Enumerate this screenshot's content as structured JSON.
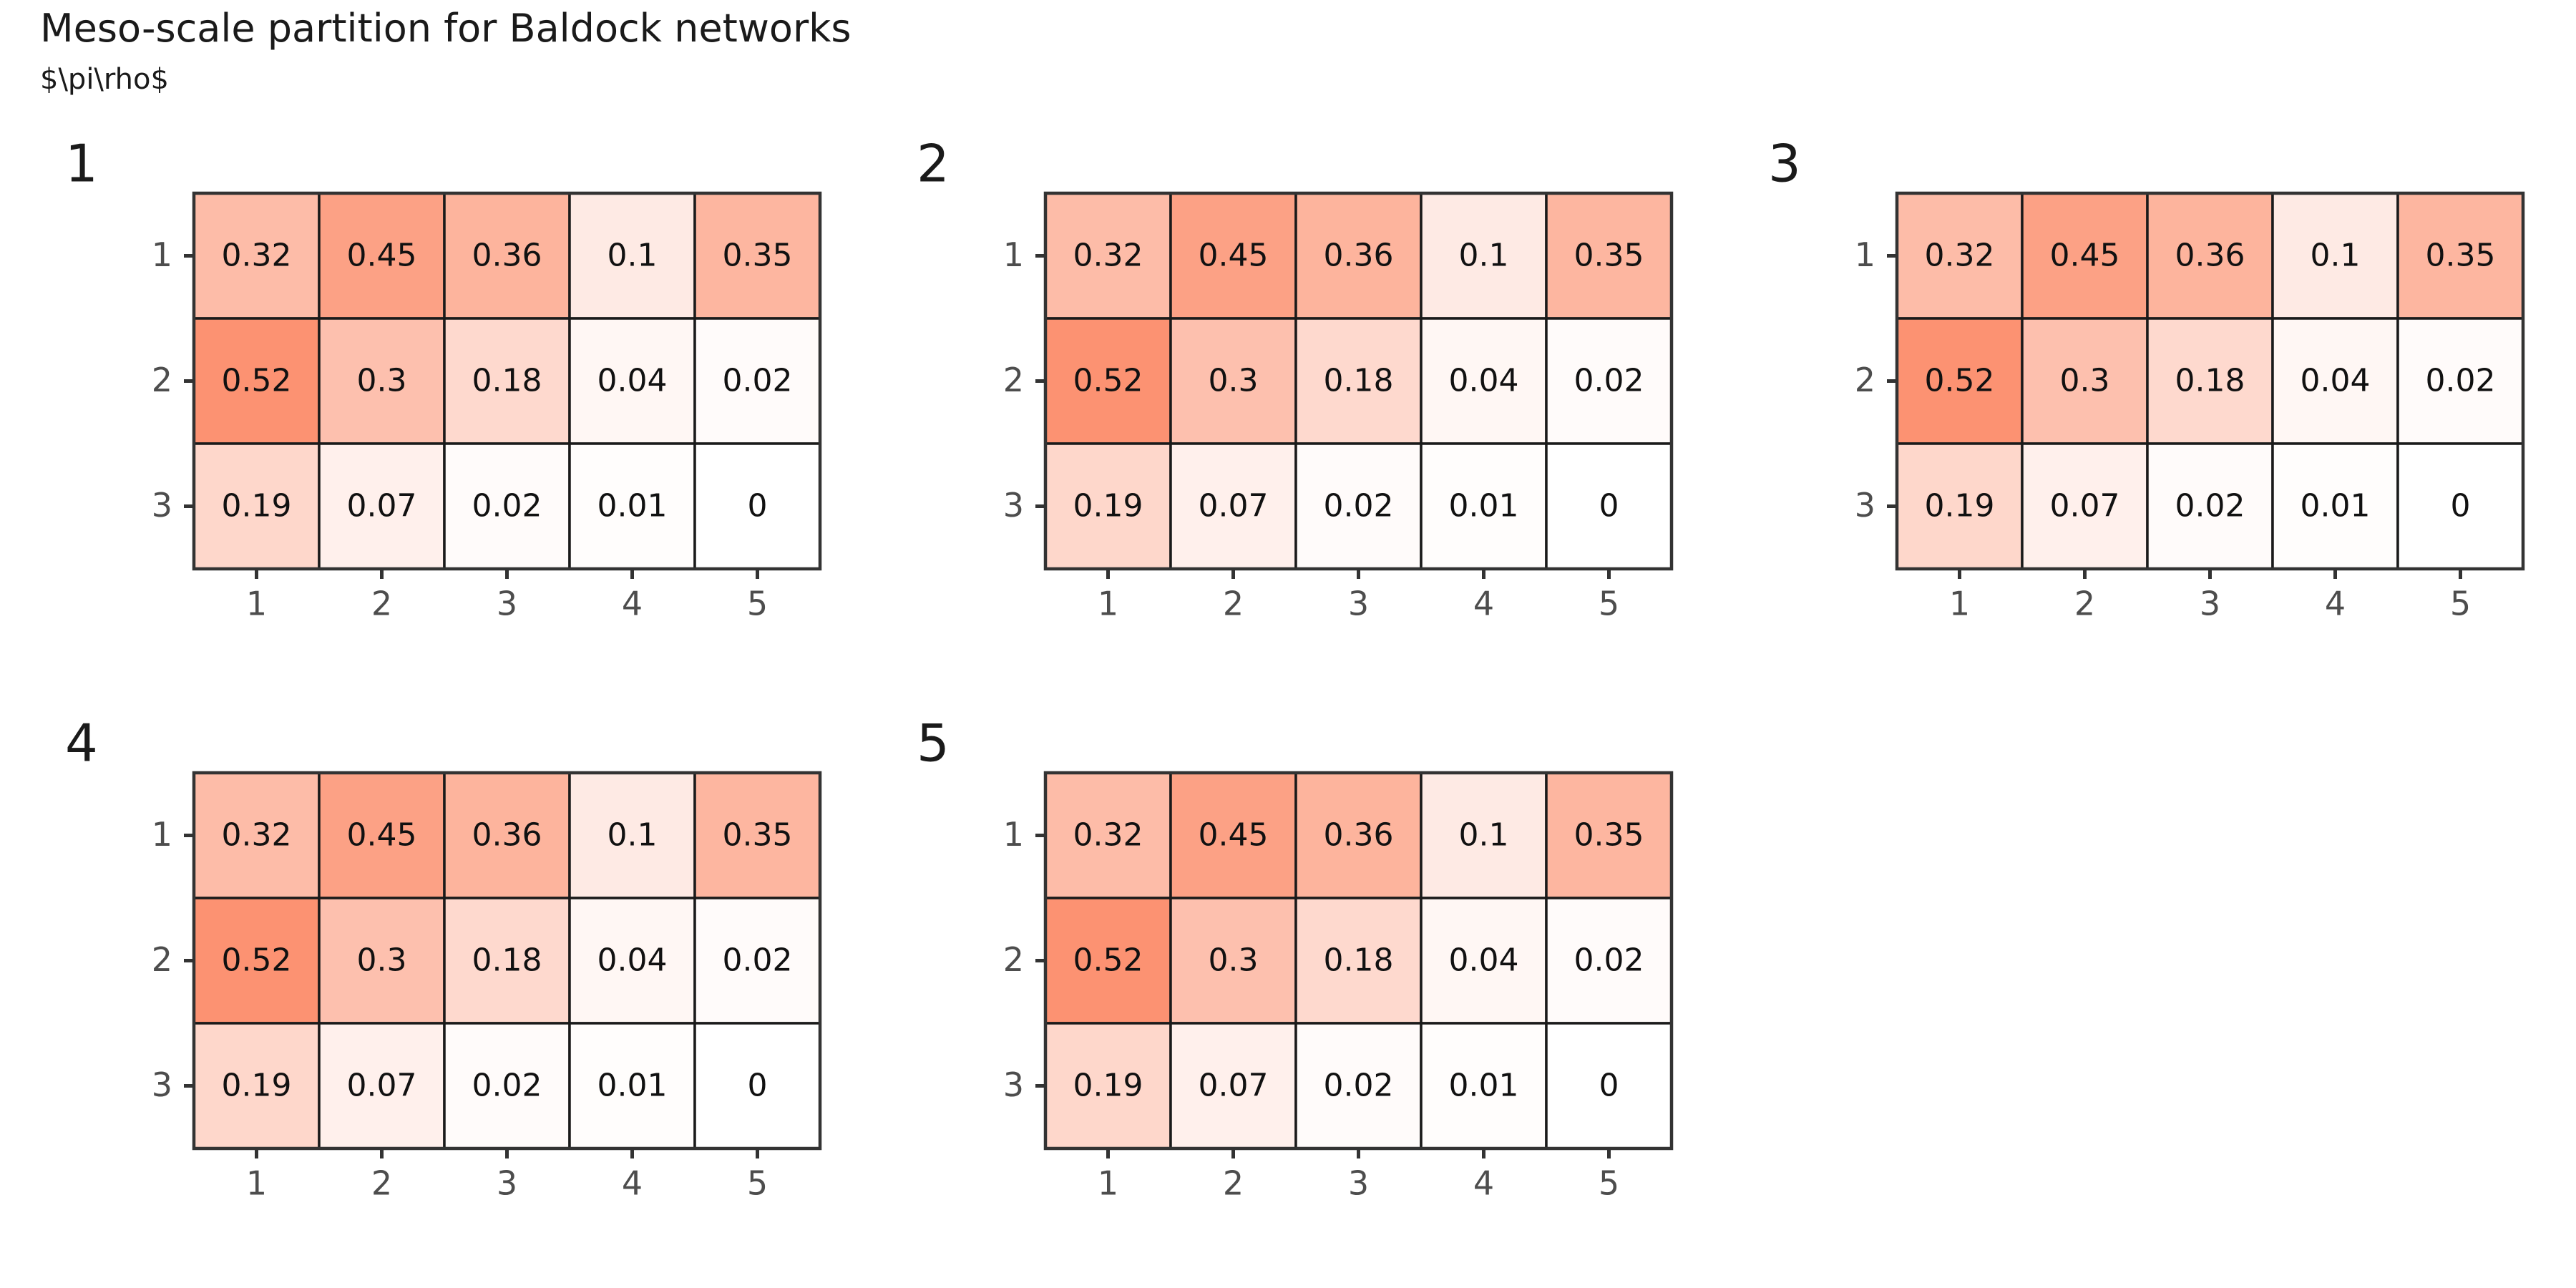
{
  "chart_data": {
    "type": "heatmap",
    "title": "Meso-scale partition for Baldock networks",
    "subtitle": "$\\pi\\rho$",
    "value_range": [
      0,
      0.52
    ],
    "color_low": "#ffffff",
    "color_high": "#fc9272",
    "rows": [
      "1",
      "2",
      "3"
    ],
    "columns": [
      "1",
      "2",
      "3",
      "4",
      "5"
    ],
    "panels": [
      {
        "label": "1",
        "values": [
          [
            0.32,
            0.45,
            0.36,
            0.1,
            0.35
          ],
          [
            0.52,
            0.3,
            0.18,
            0.04,
            0.02
          ],
          [
            0.19,
            0.07,
            0.02,
            0.01,
            0
          ]
        ]
      },
      {
        "label": "2",
        "values": [
          [
            0.32,
            0.45,
            0.36,
            0.1,
            0.35
          ],
          [
            0.52,
            0.3,
            0.18,
            0.04,
            0.02
          ],
          [
            0.19,
            0.07,
            0.02,
            0.01,
            0
          ]
        ]
      },
      {
        "label": "3",
        "values": [
          [
            0.32,
            0.45,
            0.36,
            0.1,
            0.35
          ],
          [
            0.52,
            0.3,
            0.18,
            0.04,
            0.02
          ],
          [
            0.19,
            0.07,
            0.02,
            0.01,
            0
          ]
        ]
      },
      {
        "label": "4",
        "values": [
          [
            0.32,
            0.45,
            0.36,
            0.1,
            0.35
          ],
          [
            0.52,
            0.3,
            0.18,
            0.04,
            0.02
          ],
          [
            0.19,
            0.07,
            0.02,
            0.01,
            0
          ]
        ]
      },
      {
        "label": "5",
        "values": [
          [
            0.32,
            0.45,
            0.36,
            0.1,
            0.35
          ],
          [
            0.52,
            0.3,
            0.18,
            0.04,
            0.02
          ],
          [
            0.19,
            0.07,
            0.02,
            0.01,
            0
          ]
        ]
      }
    ]
  }
}
